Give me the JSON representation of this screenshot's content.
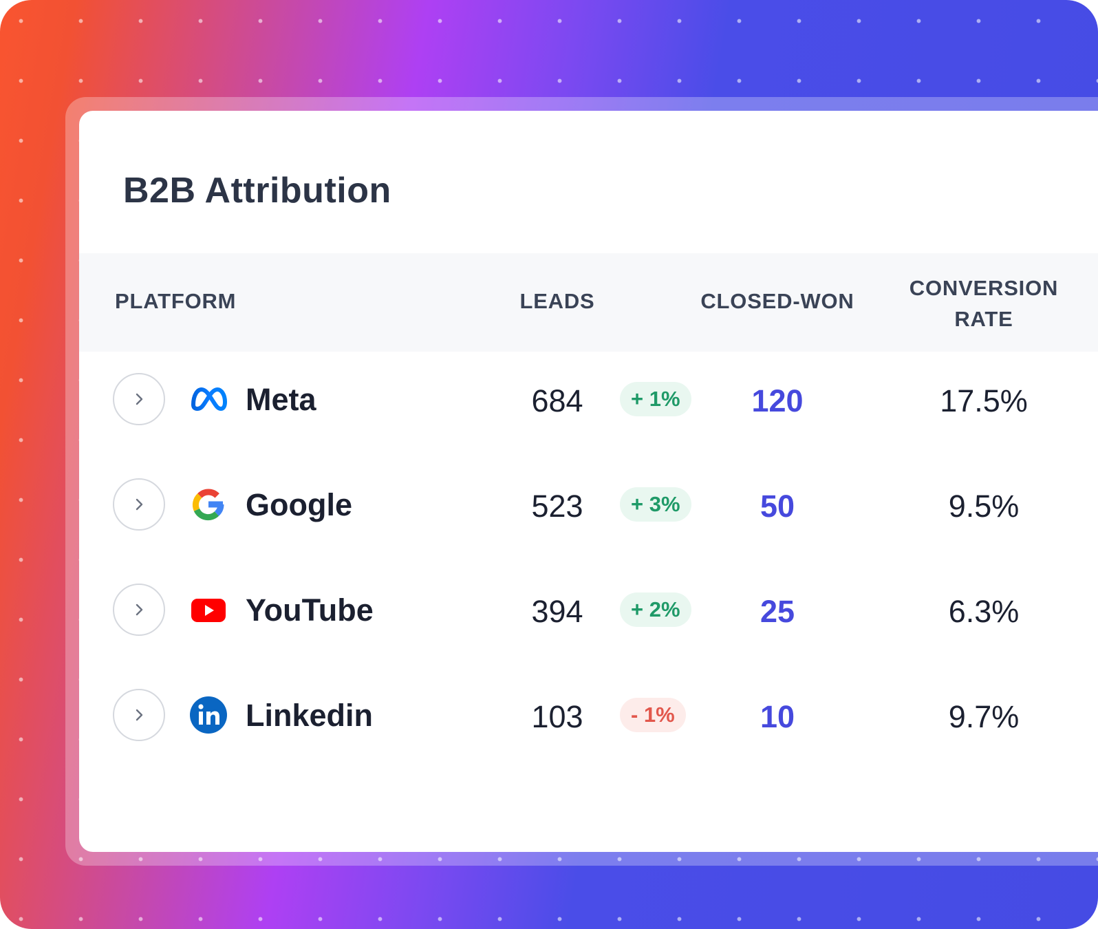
{
  "card": {
    "title": "B2B Attribution"
  },
  "table": {
    "headers": {
      "platform": "PLATFORM",
      "leads": "LEADS",
      "closed_won": "CLOSED-WON",
      "conversion_line1": "CONVERSION",
      "conversion_line2": "RATE"
    },
    "rows": [
      {
        "platform": "Meta",
        "icon": "meta-icon",
        "leads": "684",
        "change": "+ 1%",
        "trend": "up",
        "closed_won": "120",
        "conversion_rate": "17.5%"
      },
      {
        "platform": "Google",
        "icon": "google-icon",
        "leads": "523",
        "change": "+ 3%",
        "trend": "up",
        "closed_won": "50",
        "conversion_rate": "9.5%"
      },
      {
        "platform": "YouTube",
        "icon": "youtube-icon",
        "leads": "394",
        "change": "+ 2%",
        "trend": "up",
        "closed_won": "25",
        "conversion_rate": "6.3%"
      },
      {
        "platform": "Linkedin",
        "icon": "linkedin-icon",
        "leads": "103",
        "change": "- 1%",
        "trend": "down",
        "closed_won": "10",
        "conversion_rate": "9.7%"
      }
    ]
  },
  "colors": {
    "accent": "#4649DD",
    "positive": "#1F9A68",
    "negative": "#E2574C",
    "gradient_start": "#F95530",
    "gradient_mid": "#AE40F3",
    "gradient_end": "#454BE4"
  }
}
